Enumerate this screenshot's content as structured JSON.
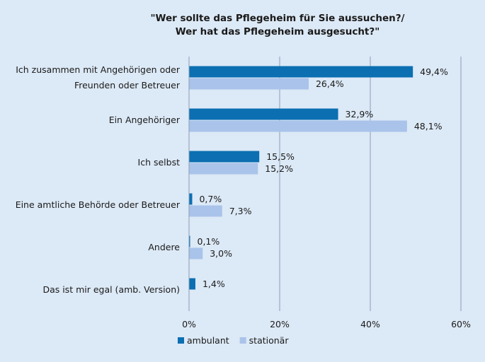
{
  "chart_data": {
    "type": "bar",
    "orientation": "horizontal",
    "title": [
      "\"Wer sollte das Pflegeheim für Sie aussuchen?/",
      "Wer hat das Pflegeheim ausgesucht?\""
    ],
    "categories": [
      [
        "Ich zusammen mit Angehörigen oder",
        "Freunden oder Betreuer"
      ],
      [
        "Ein Angehöriger"
      ],
      [
        "Ich selbst"
      ],
      [
        "Eine amtliche Behörde oder Betreuer"
      ],
      [
        "Andere"
      ],
      [
        "Das ist mir egal (amb. Version)"
      ]
    ],
    "series": [
      {
        "name": "ambulant",
        "color": "#0b6fb2",
        "values": [
          49.4,
          32.9,
          15.5,
          0.7,
          0.1,
          1.4
        ],
        "labels": [
          "49,4%",
          "32,9%",
          "15,5%",
          "0,7%",
          "0,1%",
          "1,4%"
        ]
      },
      {
        "name": "stationär",
        "color": "#a9c3ea",
        "values": [
          26.4,
          48.1,
          15.2,
          7.3,
          3.0,
          null
        ],
        "labels": [
          "26,4%",
          "48,1%",
          "15,2%",
          "7,3%",
          "3,0%",
          null
        ]
      }
    ],
    "xlim": [
      0,
      60
    ],
    "xticks": [
      0,
      20,
      40,
      60
    ],
    "xtick_labels": [
      "0%",
      "20%",
      "40%",
      "60%"
    ],
    "grid": true,
    "legend_position": "bottom-center"
  }
}
